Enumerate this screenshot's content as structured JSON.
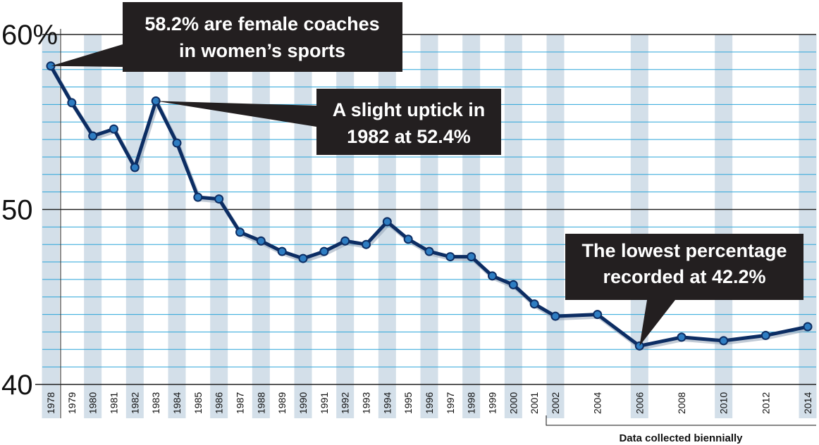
{
  "colors": {
    "band": "#d3dfe9",
    "grid": "#2aa5d9",
    "major_grid": "#222222",
    "line": "#0c2d63",
    "marker": "#2e7dc2",
    "callout_bg": "#231f20",
    "callout_text": "#ffffff"
  },
  "chart_data": {
    "type": "line",
    "ylim": [
      40,
      60
    ],
    "yticks": [
      "60%",
      "50",
      "40"
    ],
    "ytick_values": [
      60,
      50,
      40
    ],
    "grid": true,
    "categories": [
      "1978",
      "1979",
      "1980",
      "1981",
      "1982",
      "1983",
      "1984",
      "1985",
      "1986",
      "1987",
      "1988",
      "1989",
      "1990",
      "1991",
      "1992",
      "1993",
      "1994",
      "1995",
      "1996",
      "1997",
      "1998",
      "1999",
      "2000",
      "2001",
      "2002",
      "2004",
      "2006",
      "2008",
      "2010",
      "2012",
      "2014"
    ],
    "series": [
      {
        "values": [
          58.2,
          56.1,
          54.2,
          54.6,
          52.4,
          56.2,
          53.8,
          50.7,
          50.6,
          48.7,
          48.2,
          47.6,
          47.2,
          47.6,
          48.2,
          48.0,
          49.3,
          48.3,
          47.6,
          47.3,
          47.3,
          46.2,
          45.7,
          44.6,
          43.9,
          44.0,
          42.2,
          42.7,
          42.5,
          42.8,
          43.3
        ]
      }
    ],
    "annotations": [
      {
        "lines": [
          "58.2% are female coaches",
          "in women’s sports"
        ]
      },
      {
        "lines": [
          "A slight uptick in",
          "1982 at 52.4%"
        ]
      },
      {
        "lines": [
          "The lowest percentage",
          "recorded at 42.2%"
        ]
      }
    ],
    "footnote": "Data collected biennially"
  }
}
